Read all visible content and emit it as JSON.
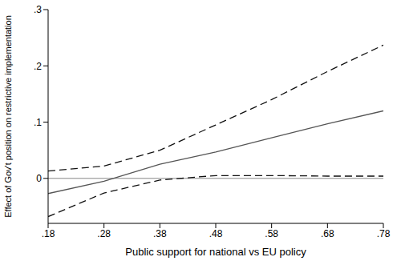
{
  "chart_data": {
    "type": "line",
    "x_label": "Public support for national vs EU policy",
    "y_label": "Effect of Gov't position on restrictive implementation",
    "x": [
      0.18,
      0.28,
      0.38,
      0.48,
      0.58,
      0.68,
      0.78
    ],
    "series": [
      {
        "color": "#555555",
        "line_style": "solid",
        "values": [
          -0.027,
          -0.005,
          0.025,
          0.047,
          0.072,
          0.097,
          0.12
        ]
      },
      {
        "color": "#111111",
        "line_style": "dashed",
        "values": [
          0.013,
          0.022,
          0.05,
          0.095,
          0.14,
          0.19,
          0.237
        ]
      },
      {
        "color": "#111111",
        "line_style": "dashed",
        "values": [
          -0.068,
          -0.026,
          -0.003,
          0.005,
          0.005,
          0.004,
          0.004
        ]
      }
    ],
    "xlim": [
      0.18,
      0.78
    ],
    "ylim": [
      -0.08,
      0.3
    ],
    "xticks": [
      {
        "value": 0.18,
        "label": ".18"
      },
      {
        "value": 0.28,
        "label": ".28"
      },
      {
        "value": 0.38,
        "label": ".38"
      },
      {
        "value": 0.48,
        "label": ".48"
      },
      {
        "value": 0.58,
        "label": ".58"
      },
      {
        "value": 0.68,
        "label": ".68"
      },
      {
        "value": 0.78,
        "label": ".78"
      }
    ],
    "yticks": [
      0,
      {
        "value": 0.1,
        "label": ".1"
      },
      {
        "value": 0.2,
        "label": ".2"
      },
      {
        "value": 0.3,
        "label": ".3"
      }
    ],
    "reference_line": 0,
    "grid": false
  }
}
